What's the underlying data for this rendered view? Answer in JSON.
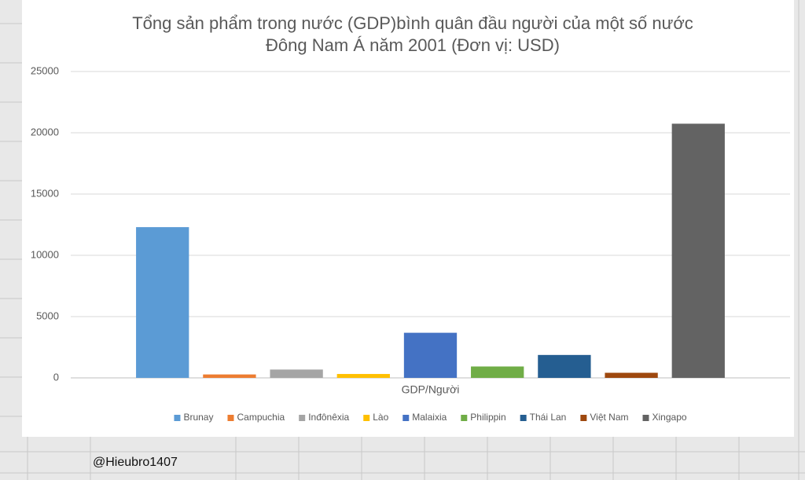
{
  "chart_data": {
    "type": "bar",
    "title": [
      "Tổng sản phẩm trong nước (GDP)bình quân đầu người của một số nước",
      "Đông Nam Á năm 2001 (Đơn vị: USD)"
    ],
    "categories": [
      "GDP/Người"
    ],
    "series": [
      {
        "name": "Brunay",
        "color": "#5b9bd5",
        "values": [
          12300
        ]
      },
      {
        "name": "Campuchia",
        "color": "#ed7d31",
        "values": [
          280
        ]
      },
      {
        "name": "Inđônêxia",
        "color": "#a5a5a5",
        "values": [
          680
        ]
      },
      {
        "name": "Lào",
        "color": "#ffc000",
        "values": [
          317
        ]
      },
      {
        "name": "Malaixia",
        "color": "#4472c4",
        "values": [
          3680
        ]
      },
      {
        "name": "Philippin",
        "color": "#70ad47",
        "values": [
          930
        ]
      },
      {
        "name": "Thái Lan",
        "color": "#255e91",
        "values": [
          1870
        ]
      },
      {
        "name": "Việt Nam",
        "color": "#9e480e",
        "values": [
          415
        ]
      },
      {
        "name": "Xingapo",
        "color": "#636363",
        "values": [
          20740
        ]
      }
    ],
    "ylim": [
      0,
      25000
    ],
    "yticks": [
      0,
      5000,
      10000,
      15000,
      20000,
      25000
    ],
    "grid": true,
    "legend": "bottom"
  },
  "watermark": "@Hieubro1407"
}
